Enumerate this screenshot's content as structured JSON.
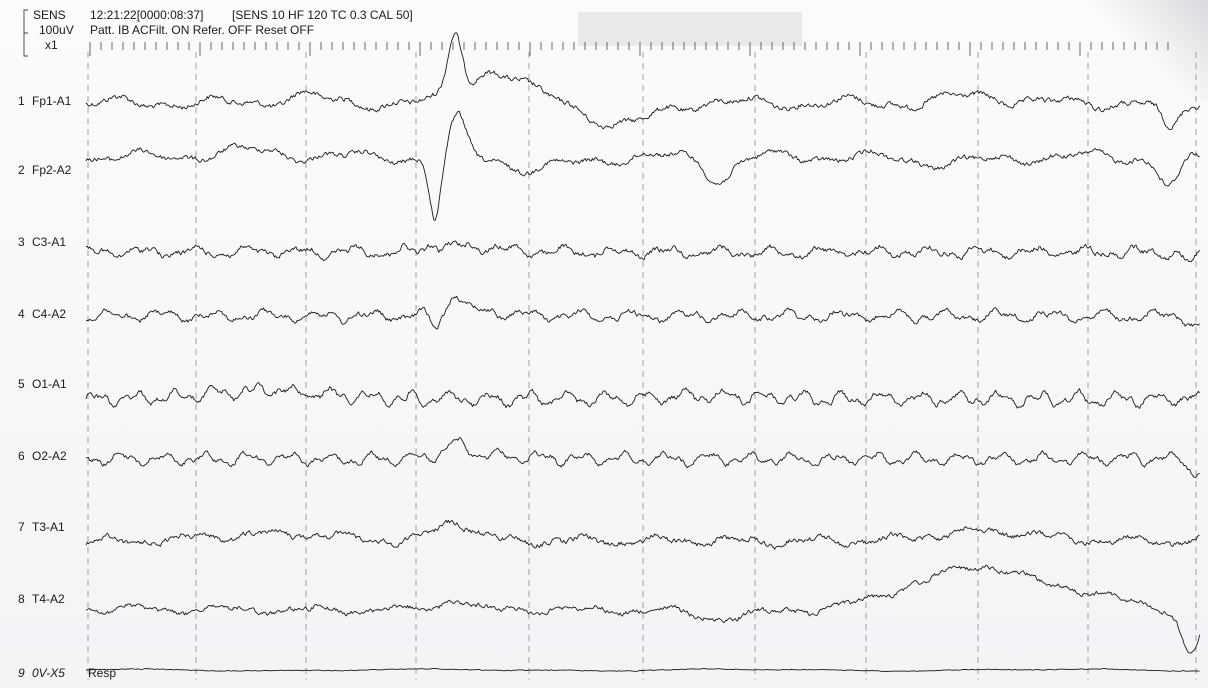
{
  "header": {
    "sens_label": "SENS",
    "sens_value": "100uV",
    "sens_mult": "x1",
    "timestamp": "12:21:22[0000:08:37]",
    "settings": "[SENS 10  HF 120  TC 0.3  CAL 50]",
    "patt_line": "Patt. IB  ACFilt. ON  Refer. OFF  Reset OFF"
  },
  "channels": [
    {
      "num": "1",
      "name": "Fp1-A1"
    },
    {
      "num": "2",
      "name": "Fp2-A2"
    },
    {
      "num": "3",
      "name": "C3-A1"
    },
    {
      "num": "4",
      "name": "C4-A2"
    },
    {
      "num": "5",
      "name": "O1-A1"
    },
    {
      "num": "6",
      "name": "O2-A2"
    },
    {
      "num": "7",
      "name": "T3-A1"
    },
    {
      "num": "8",
      "name": "T4-A2"
    },
    {
      "num": "9",
      "name": "0V-X5"
    }
  ],
  "resp_tag": "Resp",
  "colors": {
    "trace": "#1c1c1c",
    "grid": "#8a8a8a",
    "paper": "#f7f7f9",
    "redaction": "#e9e9ea"
  },
  "chart_data": {
    "type": "line",
    "grid_seconds": 10,
    "series": [
      {
        "name": "Fp1-A1"
      },
      {
        "name": "Fp2-A2"
      },
      {
        "name": "C3-A1"
      },
      {
        "name": "C4-A2"
      },
      {
        "name": "O1-A1"
      },
      {
        "name": "O2-A2"
      },
      {
        "name": "T3-A1"
      },
      {
        "name": "T4-A2"
      },
      {
        "name": "0V-X5"
      }
    ]
  }
}
